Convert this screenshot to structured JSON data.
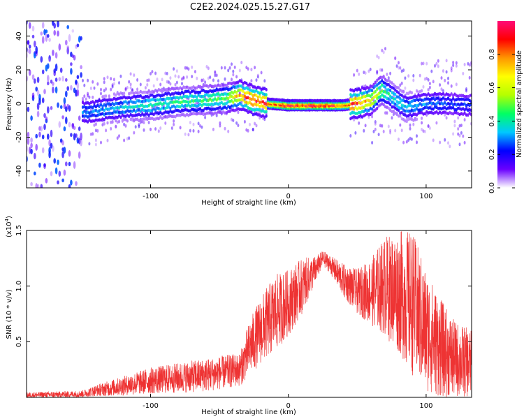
{
  "title": "C2E2.2024.025.15.27.G17",
  "chart_data": [
    {
      "type": "heatmap",
      "xlabel": "Height of straight line (km)",
      "ylabel": "Frequency (Hz)",
      "xlim": [
        -190,
        133
      ],
      "ylim": [
        -50,
        49
      ],
      "xticks": [
        -100,
        0,
        100
      ],
      "yticks": [
        -40,
        -20,
        0,
        20,
        40
      ],
      "colorbar": {
        "label": "Normalized spectral amplitude",
        "range": [
          0,
          1
        ],
        "ticks": [
          "0.0",
          "0.2",
          "0.4",
          "0.6",
          "0.8"
        ],
        "colors": [
          "#ffffff",
          "#6a00ff",
          "#0000ff",
          "#00c8ff",
          "#00ff64",
          "#b4ff00",
          "#ffff00",
          "#ff9600",
          "#ff0000",
          "#ff0a78"
        ]
      },
      "ridge": {
        "x": [
          -145,
          -120,
          -100,
          -80,
          -60,
          -45,
          -35,
          -25,
          -15,
          0,
          20,
          40,
          50,
          60,
          68,
          75,
          85,
          100,
          115,
          133
        ],
        "y": [
          -5,
          -2,
          -1,
          1,
          2,
          3,
          5,
          2,
          0,
          -1,
          -1,
          -1,
          0,
          2,
          8,
          4,
          -2,
          0,
          0,
          -1
        ],
        "peak_amplitude": [
          0.3,
          0.35,
          0.4,
          0.45,
          0.45,
          0.5,
          0.8,
          0.9,
          0.85,
          0.95,
          0.95,
          0.9,
          0.85,
          0.7,
          0.5,
          0.4,
          0.35,
          0.3,
          0.25,
          0.25
        ]
      }
    },
    {
      "type": "line",
      "xlabel": "Height of straight line (km)",
      "ylabel": "SNR (10 * v/v)",
      "yscale_label": "(x10",
      "yscale_exp": "4",
      "yscale_close": ")",
      "xlim": [
        -190,
        133
      ],
      "ylim": [
        0,
        15000
      ],
      "xticks": [
        -100,
        0,
        100
      ],
      "yticks": [
        "0.5",
        "1.0",
        "1.5"
      ],
      "ytick_values": [
        5000,
        10000,
        15000
      ],
      "color": "#ee3333",
      "envelope": {
        "x": [
          -190,
          -150,
          -140,
          -130,
          -100,
          -60,
          -35,
          -28,
          -20,
          -10,
          0,
          10,
          20,
          25,
          30,
          40,
          50,
          60,
          70,
          80,
          90,
          100,
          110,
          120,
          133
        ],
        "mean": [
          200,
          300,
          600,
          800,
          1500,
          2000,
          2500,
          4500,
          6000,
          7500,
          8500,
          10000,
          11500,
          12500,
          12000,
          10500,
          9500,
          9500,
          10000,
          9500,
          8500,
          6000,
          4500,
          3500,
          3000
        ],
        "spread": [
          250,
          300,
          500,
          700,
          1200,
          1500,
          1500,
          2500,
          3000,
          3500,
          3000,
          2500,
          1200,
          700,
          800,
          1500,
          2000,
          3000,
          4500,
          5500,
          6500,
          5500,
          4500,
          3500,
          3000
        ]
      }
    }
  ]
}
